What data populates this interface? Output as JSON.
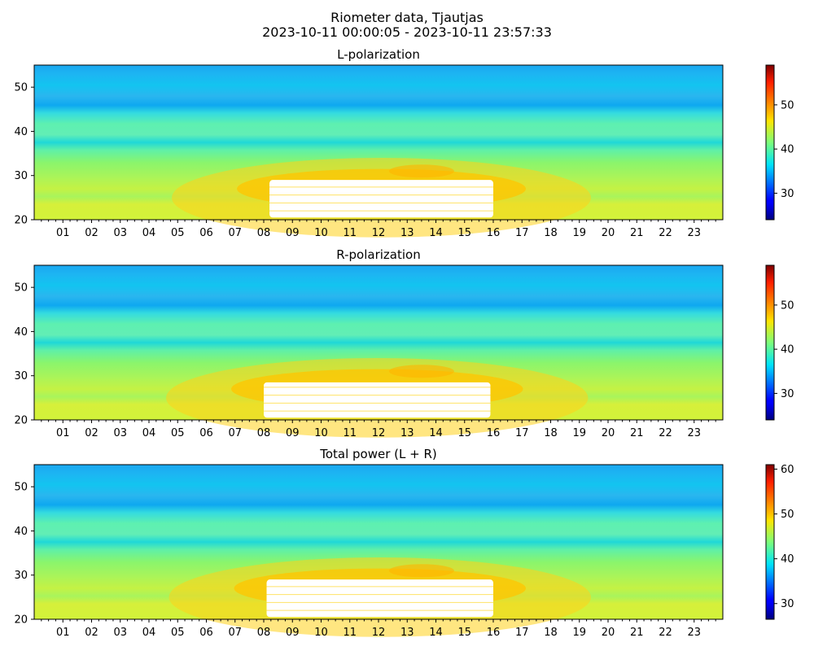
{
  "figure": {
    "title": "Riometer data, Tjautjas",
    "subtitle": "2023-10-11 00:00:05 - 2023-10-11 23:57:33"
  },
  "chart_data": [
    {
      "type": "heatmap",
      "title": "L-polarization",
      "xlabel": "",
      "ylabel": "",
      "x_ticks": [
        "01",
        "02",
        "03",
        "04",
        "05",
        "06",
        "07",
        "08",
        "09",
        "10",
        "11",
        "12",
        "13",
        "14",
        "15",
        "16",
        "17",
        "18",
        "19",
        "20",
        "21",
        "22",
        "23"
      ],
      "x_range_hours": [
        0,
        24
      ],
      "y_ticks": [
        20,
        30,
        40,
        50
      ],
      "ylim": [
        20,
        55
      ],
      "colorbar": {
        "colormap": "jet",
        "ticks": [
          30,
          40,
          50
        ],
        "range": [
          24,
          59
        ]
      },
      "saturated_region": {
        "x_hours": [
          8.2,
          16.0
        ],
        "y": [
          20.5,
          29.0
        ],
        "color": "#ffffff"
      }
    },
    {
      "type": "heatmap",
      "title": "R-polarization",
      "xlabel": "",
      "ylabel": "",
      "x_ticks": [
        "01",
        "02",
        "03",
        "04",
        "05",
        "06",
        "07",
        "08",
        "09",
        "10",
        "11",
        "12",
        "13",
        "14",
        "15",
        "16",
        "17",
        "18",
        "19",
        "20",
        "21",
        "22",
        "23"
      ],
      "x_range_hours": [
        0,
        24
      ],
      "y_ticks": [
        20,
        30,
        40,
        50
      ],
      "ylim": [
        20,
        55
      ],
      "colorbar": {
        "colormap": "jet",
        "ticks": [
          30,
          40,
          50
        ],
        "range": [
          24,
          59
        ]
      },
      "saturated_region": {
        "x_hours": [
          8.0,
          15.9
        ],
        "y": [
          20.5,
          28.5
        ],
        "color": "#ffffff"
      }
    },
    {
      "type": "heatmap",
      "title": "Total power (L + R)",
      "xlabel": "",
      "ylabel": "",
      "x_ticks": [
        "01",
        "02",
        "03",
        "04",
        "05",
        "06",
        "07",
        "08",
        "09",
        "10",
        "11",
        "12",
        "13",
        "14",
        "15",
        "16",
        "17",
        "18",
        "19",
        "20",
        "21",
        "22",
        "23"
      ],
      "x_range_hours": [
        0,
        24
      ],
      "y_ticks": [
        20,
        30,
        40,
        50
      ],
      "ylim": [
        20,
        55
      ],
      "colorbar": {
        "colormap": "jet",
        "ticks": [
          30,
          40,
          50,
          60
        ],
        "range": [
          26.5,
          61
        ]
      },
      "saturated_region": {
        "x_hours": [
          8.1,
          16.0
        ],
        "y": [
          20.5,
          29.0
        ],
        "color": "#ffffff"
      }
    }
  ]
}
